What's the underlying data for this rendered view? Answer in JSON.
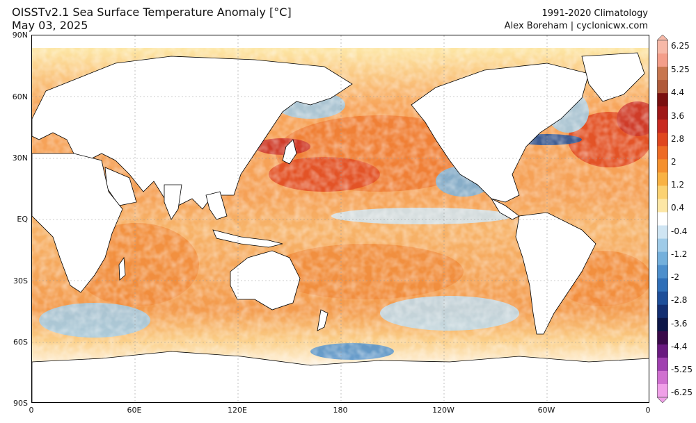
{
  "header": {
    "title": "OISSTv2.1 Sea Surface Temperature Anomaly [°C]",
    "date": "May 03, 2025",
    "climatology": "1991-2020 Climatology",
    "credit": "Alex Boreham | cyclonicwx.com"
  },
  "axes": {
    "lat_labels": [
      "90N",
      "60N",
      "30N",
      "EQ",
      "30S",
      "60S",
      "90S"
    ],
    "lon_labels": [
      "0",
      "60E",
      "120E",
      "180",
      "120W",
      "60W",
      "0"
    ]
  },
  "colorbar": {
    "labels": [
      "6.25",
      "5.25",
      "4.4",
      "3.6",
      "2.8",
      "2",
      "1.2",
      "0.4",
      "-0.4",
      "-1.2",
      "-2",
      "-2.8",
      "-3.6",
      "-4.4",
      "-5.25",
      "-6.25"
    ],
    "colors": [
      "#f7b9a8",
      "#f49e8a",
      "#c8764f",
      "#b05a3a",
      "#7a1010",
      "#a01818",
      "#c92a20",
      "#e0461e",
      "#ee6b25",
      "#f5902e",
      "#f9b243",
      "#fbd272",
      "#fde7a6",
      "#ffffff",
      "#cfe5f3",
      "#9fcbe8",
      "#74b0dc",
      "#4d8fcc",
      "#2f6fb8",
      "#1e4f9a",
      "#142f72",
      "#0d1648",
      "#3a0a4a",
      "#6a1a80",
      "#a040b0",
      "#d070d0",
      "#f0a0e8"
    ]
  },
  "colors": {
    "land": "#ffffff",
    "ocean_warm": "#f59a4a",
    "ocean_neutral": "#fde3b0",
    "ocean_cool": "#8ec3e6"
  }
}
